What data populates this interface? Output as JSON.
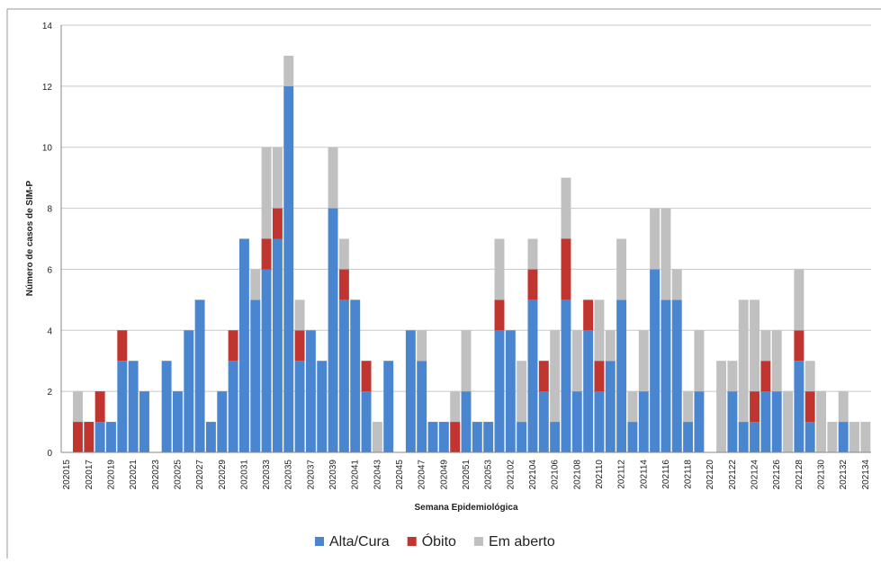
{
  "chart_data": {
    "type": "stacked-bar",
    "x_label": "Semana Epidemiológica",
    "y_label": "Número de casos de SIM-P",
    "categories": [
      "202015",
      null,
      "202017",
      null,
      "202019",
      null,
      "202021",
      null,
      "202023",
      null,
      "202025",
      null,
      "202027",
      null,
      "202029",
      null,
      "202031",
      null,
      "202033",
      null,
      "202035",
      null,
      "202037",
      null,
      "202039",
      null,
      "202041",
      null,
      "202043",
      null,
      "202045",
      null,
      "202047",
      null,
      "202049",
      null,
      "202051",
      null,
      "202053",
      null,
      "202102",
      null,
      "202104",
      null,
      "202106",
      null,
      "202108",
      null,
      "202110",
      null,
      "202112",
      null,
      "202114",
      null,
      "202116",
      null,
      "202118",
      null,
      "202120",
      null,
      "202122",
      null,
      "202124",
      null,
      "202126",
      null,
      "202128",
      null,
      "202130",
      null,
      "202132",
      null,
      "202134"
    ],
    "series": [
      {
        "name": "Alta/Cura",
        "color": "#4a86d0",
        "values": [
          0,
          0,
          0,
          1,
          1,
          3,
          3,
          2,
          0,
          3,
          2,
          4,
          5,
          1,
          2,
          3,
          7,
          5,
          6,
          7,
          12,
          3,
          4,
          3,
          8,
          5,
          5,
          2,
          0,
          3,
          0,
          4,
          3,
          1,
          1,
          0,
          2,
          1,
          1,
          4,
          4,
          1,
          5,
          2,
          1,
          5,
          2,
          4,
          2,
          3,
          5,
          1,
          2,
          6,
          5,
          5,
          1,
          2,
          0,
          0,
          2,
          1,
          1,
          2,
          2,
          0,
          3,
          1,
          0,
          0,
          1,
          0,
          0
        ]
      },
      {
        "name": "Óbito",
        "color": "#c0352f",
        "values": [
          0,
          1,
          1,
          1,
          0,
          1,
          0,
          0,
          0,
          0,
          0,
          0,
          0,
          0,
          0,
          1,
          0,
          0,
          1,
          1,
          0,
          1,
          0,
          0,
          0,
          1,
          0,
          1,
          0,
          0,
          0,
          0,
          0,
          0,
          0,
          1,
          0,
          0,
          0,
          1,
          0,
          0,
          1,
          1,
          0,
          2,
          0,
          1,
          1,
          0,
          0,
          0,
          0,
          0,
          0,
          0,
          0,
          0,
          0,
          0,
          0,
          0,
          1,
          1,
          0,
          0,
          1,
          1,
          0,
          0,
          0,
          0,
          0
        ]
      },
      {
        "name": "Em aberto",
        "color": "#c0c0c0",
        "values": [
          0,
          1,
          0,
          0,
          0,
          0,
          0,
          0,
          0,
          0,
          0,
          0,
          0,
          0,
          0,
          0,
          0,
          1,
          3,
          2,
          1,
          1,
          0,
          0,
          2,
          1,
          0,
          0,
          1,
          0,
          0,
          0,
          1,
          0,
          0,
          1,
          2,
          0,
          0,
          2,
          0,
          2,
          1,
          0,
          3,
          2,
          2,
          0,
          2,
          1,
          2,
          1,
          2,
          2,
          3,
          1,
          1,
          2,
          0,
          3,
          1,
          4,
          3,
          1,
          2,
          2,
          2,
          1,
          2,
          1,
          1,
          1,
          1
        ]
      }
    ],
    "ylim": [
      0,
      14
    ],
    "yticks": [
      0,
      2,
      4,
      6,
      8,
      10,
      12,
      14
    ],
    "grid": true,
    "legend": "bottom"
  }
}
